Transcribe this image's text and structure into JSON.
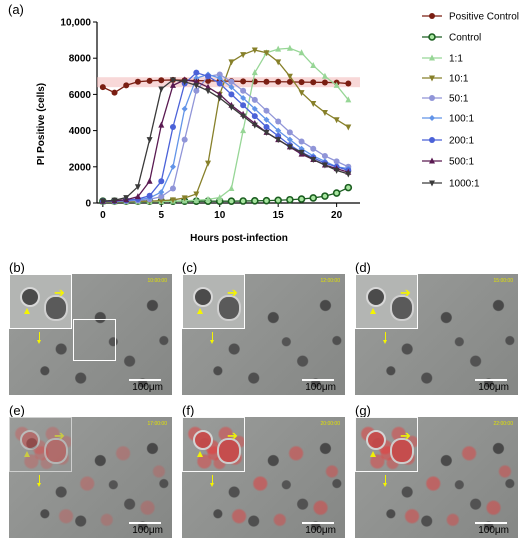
{
  "panels": [
    {
      "letter": "(b)",
      "timestamp": "10:00:00",
      "scale": "100μm"
    },
    {
      "letter": "(c)",
      "timestamp": "12:00:00",
      "scale": "100μm"
    },
    {
      "letter": "(d)",
      "timestamp": "15:00:00",
      "scale": "100μm"
    },
    {
      "letter": "(e)",
      "timestamp": "17:00:00",
      "scale": "100μm"
    },
    {
      "letter": "(f)",
      "timestamp": "20:00:00",
      "scale": "100μm"
    },
    {
      "letter": "(g)",
      "timestamp": "22:00:00",
      "scale": "100μm"
    }
  ],
  "chart_data": {
    "type": "line",
    "panel_label": "(a)",
    "xlabel": "Hours post-infection",
    "ylabel": "PI Positive (cells)",
    "xlim": [
      -0.5,
      22
    ],
    "ylim": [
      0,
      10000
    ],
    "xticks": [
      0,
      5,
      10,
      15,
      20
    ],
    "yticks": [
      0,
      2000,
      4000,
      6000,
      8000,
      10000
    ],
    "ytick_labels": [
      "0",
      "2000",
      "4000",
      "6000",
      "8000",
      "10,000"
    ],
    "grid": false,
    "legend": "right",
    "x": [
      0,
      1,
      2,
      3,
      4,
      5,
      6,
      7,
      8,
      9,
      10,
      11,
      12,
      13,
      14,
      15,
      16,
      17,
      18,
      19,
      20,
      21
    ],
    "series": [
      {
        "name": "Positive Control",
        "color": "#7a1e12",
        "marker": "circle-filled",
        "band": "#f3b8b8",
        "values": [
          6400,
          6100,
          6500,
          6700,
          6750,
          6780,
          6800,
          6780,
          6760,
          6750,
          6740,
          6730,
          6720,
          6710,
          6700,
          6700,
          6690,
          6680,
          6670,
          6660,
          6650,
          6600
        ]
      },
      {
        "name": "Control",
        "color": "#1b5e20",
        "marker": "circle-open",
        "marker_fill": "#a8e6a0",
        "values": [
          100,
          100,
          100,
          100,
          100,
          100,
          100,
          100,
          100,
          100,
          100,
          100,
          110,
          120,
          130,
          150,
          180,
          220,
          280,
          380,
          550,
          850
        ]
      },
      {
        "name": "1:1",
        "color": "#97d696",
        "marker": "triangle-up",
        "values": [
          50,
          50,
          60,
          60,
          70,
          80,
          100,
          120,
          150,
          200,
          300,
          800,
          4000,
          7200,
          8300,
          8500,
          8550,
          8300,
          7600,
          7000,
          6500,
          5700
        ]
      },
      {
        "name": "10:1",
        "color": "#87802a",
        "marker": "triangle-down",
        "values": [
          60,
          70,
          80,
          90,
          100,
          130,
          170,
          280,
          500,
          2200,
          6000,
          7800,
          8200,
          8450,
          8300,
          7800,
          7000,
          6100,
          5500,
          5000,
          4600,
          4200
        ]
      },
      {
        "name": "50:1",
        "color": "#9095d8",
        "marker": "circle-filled",
        "values": [
          80,
          90,
          110,
          140,
          200,
          350,
          800,
          3500,
          6200,
          7000,
          7100,
          6700,
          6200,
          5700,
          5100,
          4500,
          3900,
          3400,
          3000,
          2600,
          2300,
          2000
        ]
      },
      {
        "name": "100:1",
        "color": "#6294e8",
        "marker": "diamond",
        "values": [
          90,
          100,
          130,
          180,
          280,
          600,
          2000,
          5200,
          6900,
          7100,
          6900,
          6400,
          5800,
          5200,
          4600,
          4000,
          3500,
          3000,
          2600,
          2300,
          2000,
          1900
        ]
      },
      {
        "name": "200:1",
        "color": "#4b62d8",
        "marker": "circle-filled",
        "values": [
          100,
          110,
          150,
          220,
          400,
          1200,
          4200,
          6600,
          7200,
          7000,
          6600,
          6000,
          5400,
          4800,
          4200,
          3700,
          3200,
          2800,
          2500,
          2200,
          2000,
          1800
        ]
      },
      {
        "name": "500:1",
        "color": "#5a1a52",
        "marker": "triangle-up",
        "values": [
          100,
          120,
          180,
          350,
          1200,
          4300,
          6500,
          6800,
          6700,
          6400,
          6000,
          5400,
          4900,
          4400,
          3900,
          3500,
          3100,
          2700,
          2400,
          2100,
          1900,
          1700
        ]
      },
      {
        "name": "1000:1",
        "color": "#3a3a3a",
        "marker": "triangle-down",
        "values": [
          100,
          150,
          300,
          900,
          3500,
          6300,
          6800,
          6700,
          6500,
          6200,
          5800,
          5300,
          4800,
          4300,
          3900,
          3500,
          3100,
          2800,
          2400,
          2100,
          1800,
          1600
        ]
      }
    ]
  }
}
